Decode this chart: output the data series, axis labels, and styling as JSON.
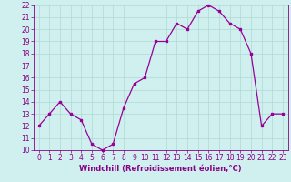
{
  "x": [
    0,
    1,
    2,
    3,
    4,
    5,
    6,
    7,
    8,
    9,
    10,
    11,
    12,
    13,
    14,
    15,
    16,
    17,
    18,
    19,
    20,
    21,
    22,
    23
  ],
  "y": [
    12,
    13,
    14,
    13,
    12.5,
    10.5,
    10,
    10.5,
    13.5,
    15.5,
    16,
    19,
    19,
    20.5,
    20,
    21.5,
    22,
    21.5,
    20.5,
    20,
    18,
    12,
    13,
    13
  ],
  "line_color": "#990099",
  "marker": "s",
  "marker_size": 2,
  "bg_color": "#cff0ee",
  "grid_color": "#b0d8d4",
  "xlabel": "Windchill (Refroidissement éolien,°C)",
  "xlabel_color": "#880088",
  "tick_color": "#880088",
  "spine_color": "#880088",
  "ylim": [
    10,
    22
  ],
  "xlim": [
    -0.5,
    23.5
  ],
  "yticks": [
    10,
    11,
    12,
    13,
    14,
    15,
    16,
    17,
    18,
    19,
    20,
    21,
    22
  ],
  "xticks": [
    0,
    1,
    2,
    3,
    4,
    5,
    6,
    7,
    8,
    9,
    10,
    11,
    12,
    13,
    14,
    15,
    16,
    17,
    18,
    19,
    20,
    21,
    22,
    23
  ],
  "tick_fontsize": 5.5,
  "xlabel_fontsize": 6.0,
  "xlabel_fontweight": "bold"
}
